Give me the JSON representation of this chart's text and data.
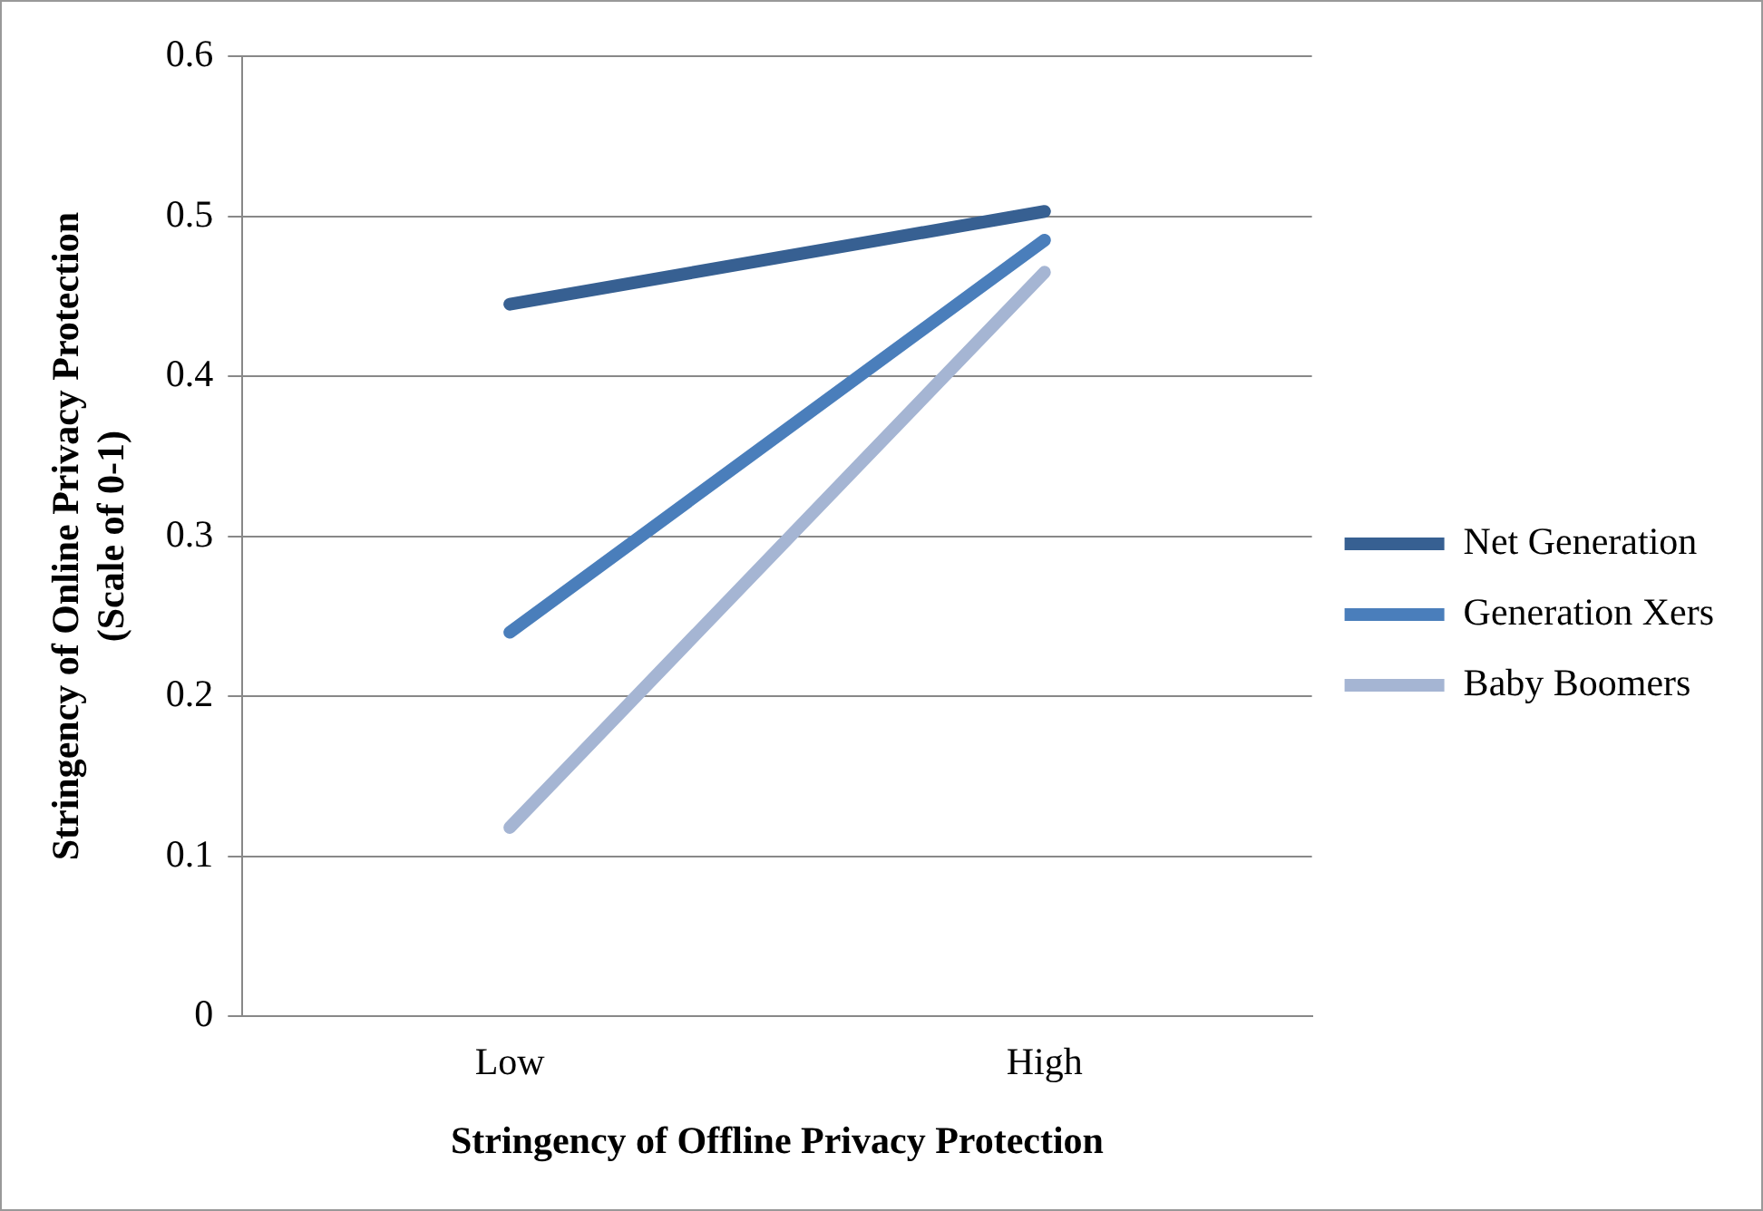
{
  "chart_data": {
    "type": "line",
    "xlabel": "Stringency of Offline Privacy Protection",
    "ylabel": "Stringency of Online Privacy Protection\n(Scale of 0-1)",
    "categories": [
      "Low",
      "High"
    ],
    "series": [
      {
        "name": "Net Generation",
        "color": "#376092",
        "values": [
          0.445,
          0.503
        ]
      },
      {
        "name": "Generation Xers",
        "color": "#4a7ebb",
        "values": [
          0.24,
          0.485
        ]
      },
      {
        "name": "Baby Boomers",
        "color": "#a5b5d3",
        "values": [
          0.118,
          0.465
        ]
      }
    ],
    "ylim": [
      0,
      0.6
    ],
    "yticks": [
      0,
      0.1,
      0.2,
      0.3,
      0.4,
      0.5,
      0.6
    ],
    "grid": "y",
    "legend": "right",
    "marker": "none",
    "line_style": "solid"
  }
}
